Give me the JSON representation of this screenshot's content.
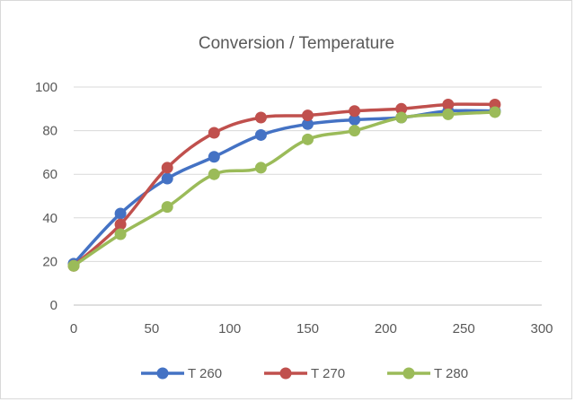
{
  "chart_data": {
    "type": "line",
    "title": "Conversion / Temperature",
    "xlabel": "",
    "ylabel": "",
    "xlim": [
      0,
      300
    ],
    "ylim": [
      0,
      100
    ],
    "xticks": [
      0,
      50,
      100,
      150,
      200,
      250,
      300
    ],
    "yticks": [
      0,
      20,
      40,
      60,
      80,
      100
    ],
    "x_tick_labels": [
      "0",
      "50",
      "100",
      "150",
      "200",
      "250",
      "300"
    ],
    "y_tick_labels": [
      "0",
      "20",
      "40",
      "60",
      "80",
      "100"
    ],
    "grid": "horizontal",
    "legend_position": "bottom",
    "x": [
      0,
      30,
      60,
      90,
      120,
      150,
      180,
      210,
      240,
      270
    ],
    "series": [
      {
        "name": "T 260",
        "color": "#4472C4",
        "values": [
          19,
          42,
          58,
          68,
          78,
          83,
          85,
          86,
          89,
          89
        ]
      },
      {
        "name": "T 270",
        "color": "#C0504D",
        "values": [
          18,
          37,
          63,
          79,
          86,
          87,
          89,
          90,
          92,
          92
        ]
      },
      {
        "name": "T 280",
        "color": "#9BBB59",
        "values": [
          18,
          32.5,
          45,
          60,
          63,
          76,
          80,
          86,
          87.5,
          88.5
        ]
      }
    ]
  }
}
